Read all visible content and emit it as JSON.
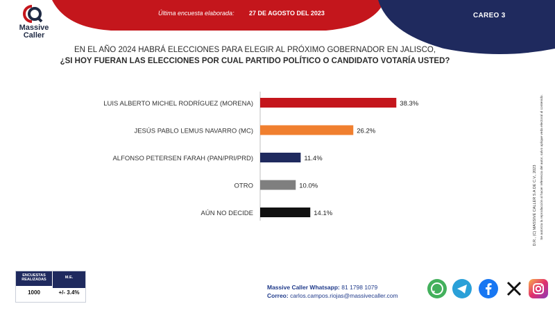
{
  "brand": {
    "line1": "Massive",
    "line2": "Caller"
  },
  "header": {
    "label": "Última encuesta elaborada:",
    "date": "27 DE AGOSTO DEL 2023",
    "careo": "CAREO 3"
  },
  "question": {
    "line1": "EN EL AÑO 2024 HABRÁ ELECCIONES PARA ELEGIR AL PRÓXIMO GOBERNADOR EN JALISCO,",
    "line2": "¿SI HOY FUERAN LAS ELECCIONES POR CUAL PARTIDO POLÍTICO O CANDIDATO VOTARÍA USTED?"
  },
  "side_note": {
    "line1": "D.R., (C) MASSIVE CALLER S.A DE C.V., 2023",
    "line2": "Se autoriza la reproducción al hacer referencia del autor, salvo aplique veda electoral al contenido."
  },
  "chart_data": {
    "type": "bar",
    "orientation": "horizontal",
    "categories": [
      "LUIS ALBERTO MICHEL RODRÍGUEZ (MORENA)",
      "JESÚS PABLO LEMUS NAVARRO (MC)",
      "ALFONSO PETERSEN FARAH (PAN/PRI/PRD)",
      "OTRO",
      "AÚN NO DECIDE"
    ],
    "values": [
      38.3,
      26.2,
      11.4,
      10.0,
      14.1
    ],
    "value_labels": [
      "38.3%",
      "26.2%",
      "11.4%",
      "10.0%",
      "14.1%"
    ],
    "colors": [
      "#c4161c",
      "#f07f2f",
      "#1f2a5e",
      "#7f7f7f",
      "#111111"
    ],
    "xlim": [
      0,
      40
    ]
  },
  "stats": {
    "col1_header": "ENCUESTAS REALIZADAS",
    "col2_header": "M.E.",
    "col1_value": "1000",
    "col2_value": "+/- 3.4%"
  },
  "contact": {
    "whatsapp_label": "Massive Caller Whatsapp:",
    "whatsapp_value": "81 1798 1079",
    "email_label": "Correo:",
    "email_value": "carlos.campos.riojas@massivecaller.com"
  },
  "social_icons": [
    "whatsapp-icon",
    "telegram-icon",
    "facebook-icon",
    "x-icon",
    "instagram-icon"
  ],
  "colors": {
    "red": "#c4161c",
    "navy": "#1f2a5e",
    "orange": "#f07f2f"
  }
}
